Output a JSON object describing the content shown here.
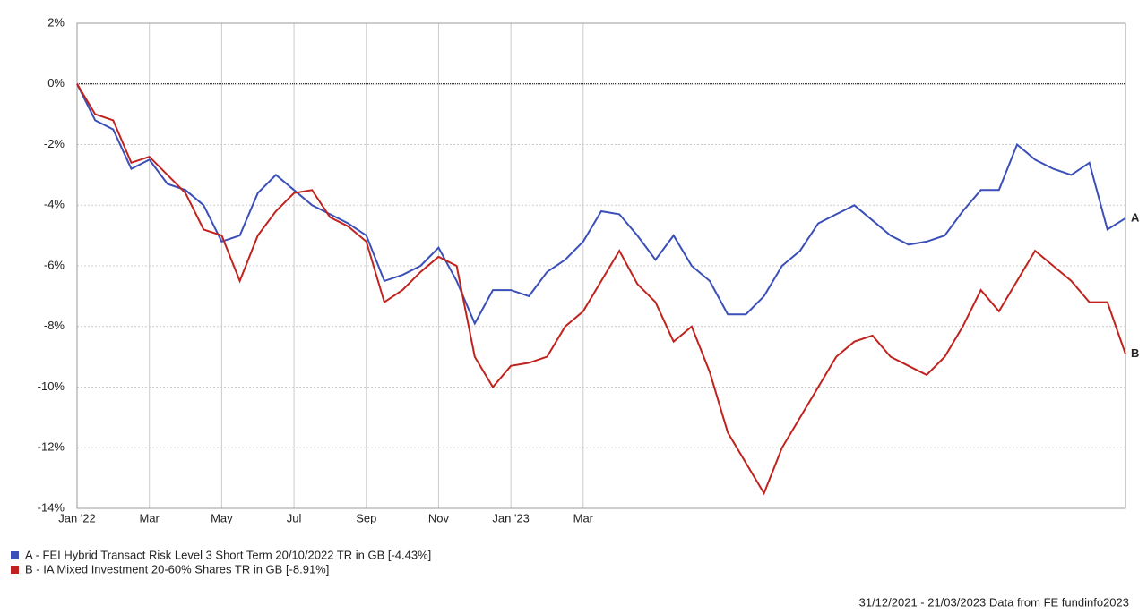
{
  "chart_data": {
    "type": "line",
    "categories": [
      "Jan '22",
      null,
      null,
      null,
      "Mar",
      null,
      null,
      null,
      "May",
      null,
      null,
      null,
      "Jul",
      null,
      null,
      null,
      "Sep",
      null,
      null,
      null,
      "Nov",
      null,
      null,
      null,
      "Jan '23",
      null,
      null,
      null,
      "Mar",
      null,
      null,
      null,
      null,
      null,
      null,
      null,
      null,
      null,
      null,
      null,
      null,
      null,
      null,
      null,
      null,
      null,
      null,
      null,
      null,
      null,
      null,
      null,
      null,
      null,
      null,
      null,
      null,
      null,
      null
    ],
    "series": [
      {
        "name": "A - FEI Hybrid Transact Risk Level 3 Short Term 20/10/2022 TR in GB [-4.43%]",
        "end_label": "A",
        "color": "#3a4fb8",
        "values": [
          0,
          -1.2,
          -1.5,
          -2.8,
          -2.5,
          -3.3,
          -3.5,
          -4.0,
          -5.2,
          -5.0,
          -3.6,
          -3.0,
          -3.5,
          -4.0,
          -4.3,
          -4.6,
          -5.0,
          -6.5,
          -6.3,
          -6.0,
          -5.4,
          -6.5,
          -7.9,
          -6.8,
          -6.8,
          -7.0,
          -6.2,
          -5.8,
          -5.2,
          -4.2,
          -4.3,
          -5.0,
          -5.8,
          -5.0,
          -6.0,
          -6.5,
          -7.6,
          -7.6,
          -7.0,
          -6.0,
          -5.5,
          -4.6,
          -4.3,
          -4.0,
          -4.5,
          -5.0,
          -5.3,
          -5.2,
          -5.0,
          -4.2,
          -3.5,
          -3.5,
          -2.0,
          -2.5,
          -2.8,
          -3.0,
          -2.6,
          -4.8,
          -4.43
        ]
      },
      {
        "name": "B - IA Mixed Investment 20-60% Shares TR in GB [-8.91%]",
        "end_label": "B",
        "color": "#c0231e",
        "values": [
          0,
          -1.0,
          -1.2,
          -2.6,
          -2.4,
          -3.0,
          -3.6,
          -4.8,
          -5.0,
          -6.5,
          -5.0,
          -4.2,
          -3.6,
          -3.5,
          -4.4,
          -4.7,
          -5.2,
          -7.2,
          -6.8,
          -6.2,
          -5.7,
          -6.0,
          -9.0,
          -10.0,
          -9.3,
          -9.2,
          -9.0,
          -8.0,
          -7.5,
          -6.5,
          -5.5,
          -6.6,
          -7.2,
          -8.5,
          -8.0,
          -9.5,
          -11.5,
          -12.5,
          -13.5,
          -12.0,
          -11.0,
          -10.0,
          -9.0,
          -8.5,
          -8.3,
          -9.0,
          -9.3,
          -9.6,
          -9.0,
          -8.0,
          -6.8,
          -7.5,
          -6.5,
          -5.5,
          -6.0,
          -6.5,
          -7.2,
          -7.2,
          -8.91
        ]
      }
    ],
    "ylim": [
      -14,
      2
    ],
    "yticks": [
      {
        "value": -14,
        "label": "-14%"
      },
      {
        "value": -12,
        "label": "-12%"
      },
      {
        "value": -10,
        "label": "-10%"
      },
      {
        "value": -8,
        "label": "-8%"
      },
      {
        "value": -6,
        "label": "-6%"
      },
      {
        "value": -4,
        "label": "-4%"
      },
      {
        "value": -2,
        "label": "-2%"
      },
      {
        "value": 0,
        "label": "0%"
      },
      {
        "value": 2,
        "label": "2%"
      }
    ],
    "grid": true,
    "zero_line": true,
    "footer": "31/12/2021 - 21/03/2023 Data from FE fundinfo2023"
  }
}
